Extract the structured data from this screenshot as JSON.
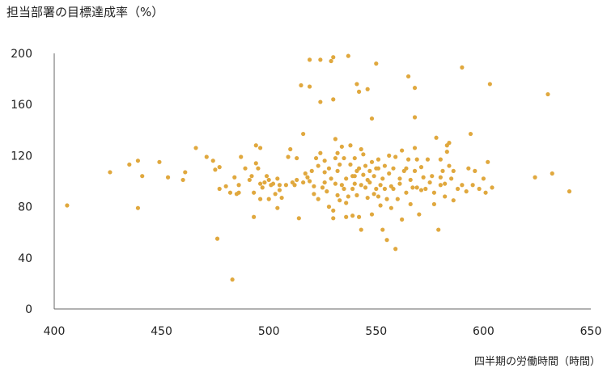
{
  "chart_data": {
    "type": "scatter",
    "ylabel": "担当部署の目標達成率（%）",
    "xlabel": "四半期の労働時間（時間）",
    "xlim": [
      400,
      650
    ],
    "ylim": [
      0,
      200
    ],
    "xticks": [
      400,
      450,
      500,
      550,
      600,
      650
    ],
    "yticks": [
      0,
      40,
      80,
      120,
      160,
      200
    ],
    "grid": false,
    "colors": {
      "point": "#E0A83E",
      "axis": "#666666"
    },
    "points": [
      [
        406,
        81
      ],
      [
        426,
        107
      ],
      [
        435,
        113
      ],
      [
        439,
        116
      ],
      [
        439,
        79
      ],
      [
        441,
        104
      ],
      [
        449,
        115
      ],
      [
        453,
        103
      ],
      [
        460,
        101
      ],
      [
        461,
        107
      ],
      [
        466,
        126
      ],
      [
        471,
        119
      ],
      [
        474,
        116
      ],
      [
        475,
        109
      ],
      [
        476,
        55
      ],
      [
        477,
        111
      ],
      [
        477,
        94
      ],
      [
        480,
        96
      ],
      [
        482,
        91
      ],
      [
        483,
        23
      ],
      [
        484,
        103
      ],
      [
        485,
        90
      ],
      [
        486,
        97
      ],
      [
        486,
        91
      ],
      [
        487,
        119
      ],
      [
        489,
        110
      ],
      [
        491,
        101
      ],
      [
        492,
        104
      ],
      [
        493,
        72
      ],
      [
        493,
        91
      ],
      [
        494,
        114
      ],
      [
        494,
        128
      ],
      [
        495,
        110
      ],
      [
        496,
        98
      ],
      [
        496,
        126
      ],
      [
        496,
        86
      ],
      [
        497,
        95
      ],
      [
        498,
        99
      ],
      [
        499,
        104
      ],
      [
        500,
        101
      ],
      [
        500,
        86
      ],
      [
        501,
        97
      ],
      [
        502,
        98
      ],
      [
        503,
        90
      ],
      [
        504,
        102
      ],
      [
        504,
        79
      ],
      [
        505,
        93
      ],
      [
        505,
        97
      ],
      [
        506,
        87
      ],
      [
        508,
        97
      ],
      [
        509,
        119
      ],
      [
        510,
        125
      ],
      [
        511,
        99
      ],
      [
        512,
        97
      ],
      [
        513,
        101
      ],
      [
        513,
        118
      ],
      [
        514,
        71
      ],
      [
        515,
        175
      ],
      [
        516,
        99
      ],
      [
        516,
        137
      ],
      [
        517,
        106
      ],
      [
        518,
        103
      ],
      [
        519,
        100
      ],
      [
        519,
        174
      ],
      [
        520,
        108
      ],
      [
        521,
        96
      ],
      [
        521,
        90
      ],
      [
        522,
        118
      ],
      [
        523,
        112
      ],
      [
        523,
        86
      ],
      [
        524,
        162
      ],
      [
        524,
        122
      ],
      [
        525,
        95
      ],
      [
        526,
        107
      ],
      [
        526,
        99
      ],
      [
        526,
        116
      ],
      [
        527,
        92
      ],
      [
        528,
        80
      ],
      [
        528,
        110
      ],
      [
        529,
        102
      ],
      [
        530,
        164
      ],
      [
        530,
        71
      ],
      [
        530,
        77
      ],
      [
        531,
        98
      ],
      [
        531,
        118
      ],
      [
        531,
        133
      ],
      [
        532,
        89
      ],
      [
        532,
        108
      ],
      [
        532,
        122
      ],
      [
        533,
        113
      ],
      [
        533,
        85
      ],
      [
        534,
        97
      ],
      [
        534,
        127
      ],
      [
        535,
        94
      ],
      [
        535,
        118
      ],
      [
        536,
        83
      ],
      [
        536,
        102
      ],
      [
        536,
        72
      ],
      [
        537,
        88
      ],
      [
        538,
        113
      ],
      [
        538,
        128
      ],
      [
        539,
        94
      ],
      [
        539,
        104
      ],
      [
        539,
        73
      ],
      [
        540,
        104
      ],
      [
        540,
        98
      ],
      [
        540,
        118
      ],
      [
        541,
        108
      ],
      [
        541,
        89
      ],
      [
        542,
        110
      ],
      [
        542,
        72
      ],
      [
        543,
        125
      ],
      [
        543,
        97
      ],
      [
        543,
        62
      ],
      [
        544,
        105
      ],
      [
        544,
        121
      ],
      [
        545,
        95
      ],
      [
        545,
        112
      ],
      [
        546,
        101
      ],
      [
        546,
        87
      ],
      [
        547,
        108
      ],
      [
        547,
        99
      ],
      [
        548,
        74
      ],
      [
        548,
        115
      ],
      [
        549,
        90
      ],
      [
        549,
        104
      ],
      [
        550,
        94
      ],
      [
        550,
        110
      ],
      [
        551,
        117
      ],
      [
        551,
        88
      ],
      [
        551,
        110
      ],
      [
        552,
        81
      ],
      [
        552,
        97
      ],
      [
        553,
        102
      ],
      [
        553,
        62
      ],
      [
        554,
        112
      ],
      [
        554,
        94
      ],
      [
        555,
        54
      ],
      [
        555,
        86
      ],
      [
        556,
        120
      ],
      [
        556,
        106
      ],
      [
        557,
        96
      ],
      [
        557,
        79
      ],
      [
        558,
        110
      ],
      [
        558,
        94
      ],
      [
        559,
        47
      ],
      [
        559,
        119
      ],
      [
        560,
        86
      ],
      [
        561,
        102
      ],
      [
        561,
        98
      ],
      [
        562,
        124
      ],
      [
        562,
        70
      ],
      [
        563,
        108
      ],
      [
        564,
        110
      ],
      [
        564,
        91
      ],
      [
        565,
        117
      ],
      [
        566,
        82
      ],
      [
        566,
        101
      ],
      [
        567,
        95
      ],
      [
        568,
        108
      ],
      [
        568,
        126
      ],
      [
        569,
        95
      ],
      [
        569,
        117
      ],
      [
        570,
        74
      ],
      [
        571,
        93
      ],
      [
        571,
        111
      ],
      [
        572,
        103
      ],
      [
        573,
        94
      ],
      [
        574,
        117
      ],
      [
        575,
        99
      ],
      [
        576,
        104
      ],
      [
        577,
        91
      ],
      [
        577,
        82
      ],
      [
        578,
        134
      ],
      [
        579,
        62
      ],
      [
        580,
        97
      ],
      [
        580,
        103
      ],
      [
        580,
        117
      ],
      [
        581,
        108
      ],
      [
        582,
        88
      ],
      [
        582,
        98
      ],
      [
        583,
        123
      ],
      [
        583,
        128
      ],
      [
        584,
        130
      ],
      [
        584,
        112
      ],
      [
        585,
        102
      ],
      [
        586,
        108
      ],
      [
        586,
        85
      ],
      [
        588,
        94
      ],
      [
        590,
        97
      ],
      [
        592,
        92
      ],
      [
        593,
        110
      ],
      [
        594,
        137
      ],
      [
        595,
        97
      ],
      [
        596,
        108
      ],
      [
        598,
        94
      ],
      [
        600,
        102
      ],
      [
        601,
        91
      ],
      [
        602,
        115
      ],
      [
        604,
        95
      ],
      [
        624,
        103
      ],
      [
        630,
        168
      ],
      [
        632,
        106
      ],
      [
        640,
        92
      ],
      [
        519,
        195
      ],
      [
        524,
        195
      ],
      [
        529,
        194
      ],
      [
        530,
        197
      ],
      [
        537,
        198
      ],
      [
        546,
        172
      ],
      [
        542,
        170
      ],
      [
        550,
        192
      ],
      [
        565,
        182
      ],
      [
        568,
        173
      ],
      [
        568,
        150
      ],
      [
        590,
        189
      ],
      [
        603,
        176
      ],
      [
        541,
        176
      ],
      [
        548,
        149
      ]
    ]
  }
}
